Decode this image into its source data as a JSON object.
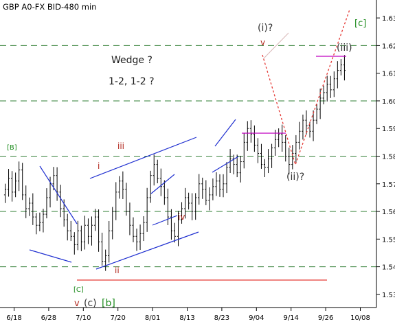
{
  "chart_data": {
    "type": "ohlc",
    "title": "GBP A0-FX BID-480 min",
    "y_axis": {
      "min": 1.525,
      "max": 1.635,
      "ticks": [
        "1.53",
        "1.54",
        "1.55",
        "1.56",
        "1.57",
        "1.58",
        "1.59",
        "1.60",
        "1.61",
        "1.62",
        "1.63"
      ]
    },
    "x_axis": {
      "ticks": [
        "6/18",
        "6/28",
        "7/10",
        "7/20",
        "8/01",
        "8/13",
        "8/23",
        "9/04",
        "9/14",
        "9/26",
        "10/08"
      ],
      "tick_index": [
        0,
        10,
        20,
        30,
        40,
        50,
        60,
        70,
        80,
        90,
        100
      ]
    },
    "grid": "dashed horizontal lines at 1.54, 1.56, 1.58, 1.60, 1.62",
    "annotations": {
      "wedge": "Wedge ?",
      "count": "1-2, 1-2 ?",
      "wave_i_top": "(i)?",
      "wave_v_top": "v",
      "wave_ii_proj": "(ii)?",
      "wave_iii_proj": "(iii)",
      "wave_c_big": "[c]",
      "wave_B": "[B]",
      "wave_iii": "iii",
      "wave_i": "i",
      "wave_ii": "ii",
      "wave_iv": "iv",
      "wave_C": "[C]",
      "wave_v_c": "v",
      "wave_c_paren": "(c)",
      "wave_b_bracket": "[b]"
    },
    "closes": [
      1.568,
      1.572,
      1.567,
      1.571,
      1.575,
      1.566,
      1.561,
      1.563,
      1.558,
      1.555,
      1.556,
      1.559,
      1.565,
      1.57,
      1.573,
      1.567,
      1.561,
      1.557,
      1.553,
      1.551,
      1.548,
      1.553,
      1.549,
      1.555,
      1.551,
      1.555,
      1.558,
      1.549,
      1.542,
      1.544,
      1.553,
      1.56,
      1.567,
      1.571,
      1.568,
      1.56,
      1.555,
      1.551,
      1.549,
      1.552,
      1.556,
      1.565,
      1.573,
      1.577,
      1.572,
      1.569,
      1.565,
      1.558,
      1.553,
      1.551,
      1.557,
      1.561,
      1.565,
      1.563,
      1.56,
      1.565,
      1.57,
      1.568,
      1.564,
      1.566,
      1.569,
      1.571,
      1.568,
      1.57,
      1.576,
      1.579,
      1.577,
      1.574,
      1.578,
      1.585,
      1.59,
      1.588,
      1.584,
      1.581,
      1.577,
      1.576,
      1.579,
      1.583,
      1.586,
      1.588,
      1.585,
      1.58,
      1.577,
      1.581,
      1.585,
      1.589,
      1.593,
      1.591,
      1.589,
      1.593,
      1.597,
      1.601,
      1.603,
      1.606,
      1.604,
      1.608,
      1.611,
      1.613,
      1.611
    ]
  }
}
